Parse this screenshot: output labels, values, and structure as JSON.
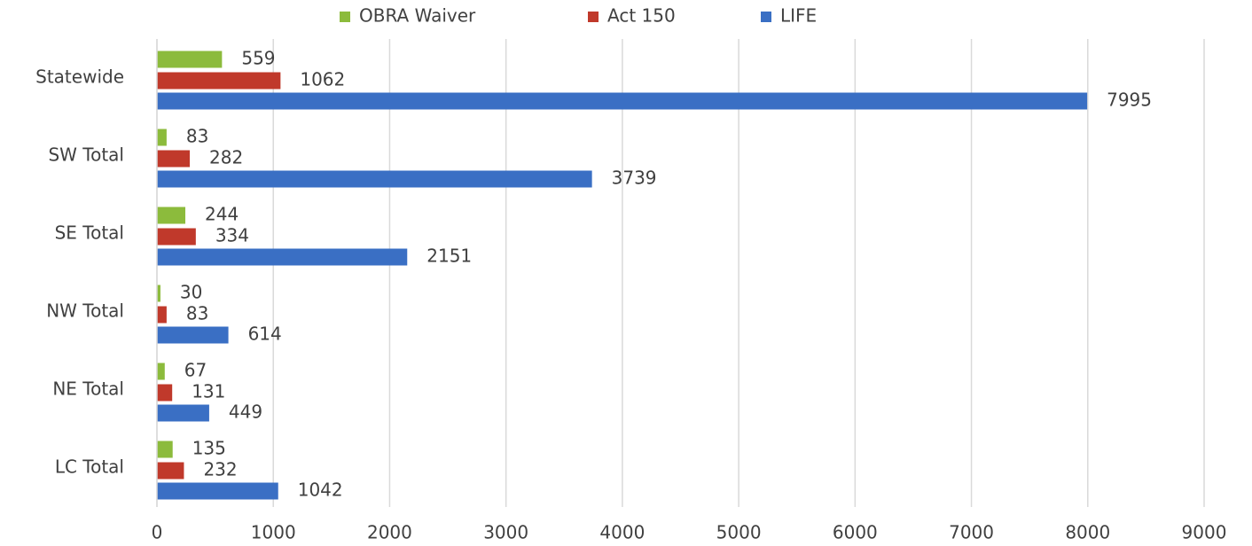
{
  "chart_data": {
    "type": "bar",
    "orientation": "horizontal",
    "categories": [
      "Statewide",
      "SW Total",
      "SE Total",
      "NW Total",
      "NE Total",
      "LC Total"
    ],
    "series": [
      {
        "name": "OBRA Waiver",
        "color": "#8cbb3c",
        "values": [
          559,
          83,
          244,
          30,
          67,
          135
        ]
      },
      {
        "name": "Act 150",
        "color": "#c0392b",
        "values": [
          1062,
          282,
          334,
          83,
          131,
          232
        ]
      },
      {
        "name": "LIFE",
        "color": "#3a6fc4",
        "values": [
          7995,
          3739,
          2151,
          614,
          449,
          1042
        ]
      }
    ],
    "xlim": [
      0,
      9000
    ],
    "xticks": [
      0,
      1000,
      2000,
      3000,
      4000,
      5000,
      6000,
      7000,
      8000,
      9000
    ],
    "grid": true,
    "legend": "top"
  }
}
